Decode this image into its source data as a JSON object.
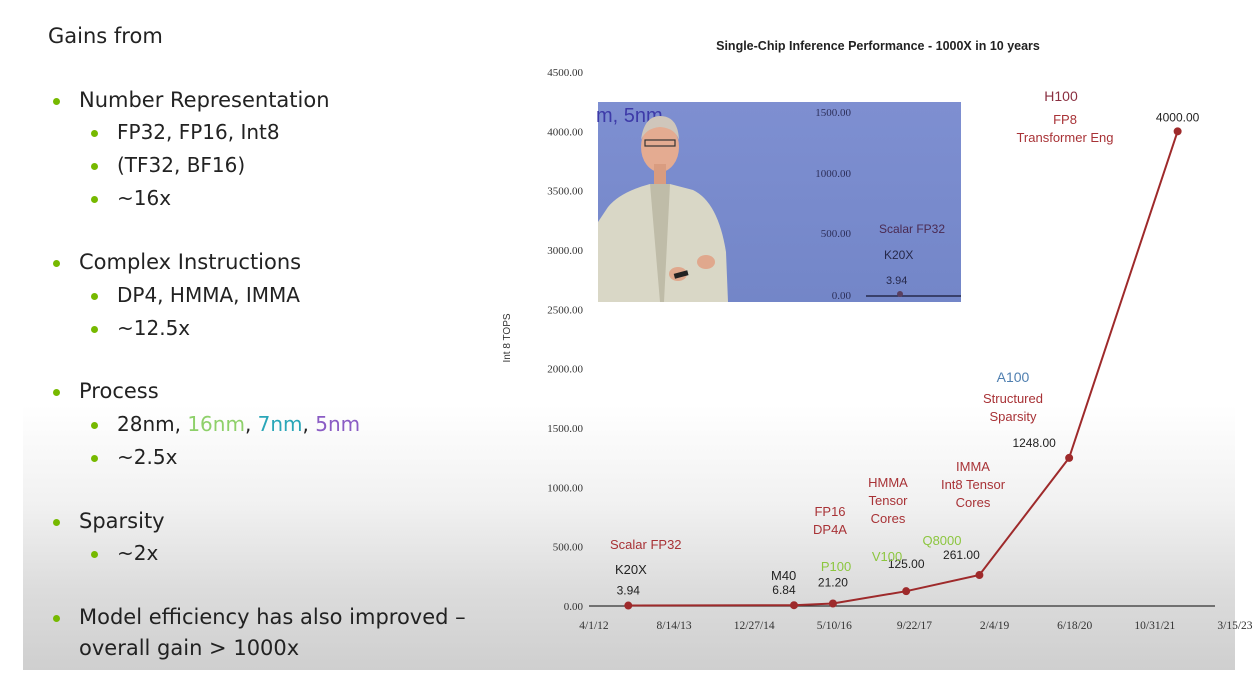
{
  "slide": {
    "heading": "Gains from",
    "bullets": [
      {
        "text": "Number Representation",
        "subs": [
          "FP32, FP16, Int8",
          "(TF32, BF16)",
          "~16x"
        ]
      },
      {
        "text": "Complex Instructions",
        "subs": [
          "DP4, HMMA, IMMA",
          "~12.5x"
        ]
      },
      {
        "text": "Process",
        "process": {
          "p1": "28nm",
          "sep1": ", ",
          "p2": "16nm",
          "sep2": ", ",
          "p3": "7nm",
          "sep3": ", ",
          "p4": "5nm"
        },
        "subs": [
          "~2.5x"
        ]
      },
      {
        "text": "Sparsity",
        "subs": [
          "~2x"
        ]
      },
      {
        "text_line1": "Model efficiency has also improved –",
        "text_line2": "overall gain > 1000x"
      }
    ]
  },
  "chart_data": {
    "type": "line",
    "title": "Single-Chip Inference Performance - 1000X in 10 years",
    "ylabel": "Int 8 TOPS",
    "xlabel": "",
    "ylim": [
      0,
      4500
    ],
    "yticks": [
      "0.00",
      "500.00",
      "1000.00",
      "1500.00",
      "2000.00",
      "2500.00",
      "3000.00",
      "3500.00",
      "4000.00",
      "4500.00"
    ],
    "xticks": [
      "4/1/12",
      "8/14/13",
      "12/27/14",
      "5/10/16",
      "9/22/17",
      "2/4/19",
      "6/18/20",
      "10/31/21",
      "3/15/23"
    ],
    "xlim": [
      "2012-04-01",
      "2023-03-15"
    ],
    "line_color": "#9e2a2b",
    "points": [
      {
        "date": "2012-11-01",
        "value": 3.94,
        "label": "3.94"
      },
      {
        "date": "2015-09-01",
        "value": 6.84,
        "label": "6.84"
      },
      {
        "date": "2016-05-01",
        "value": 21.2,
        "label": "21.20"
      },
      {
        "date": "2017-08-01",
        "value": 125.0,
        "label": "125.00"
      },
      {
        "date": "2018-11-01",
        "value": 261.0,
        "label": "261.00"
      },
      {
        "date": "2020-05-14",
        "value": 1248.0,
        "label": "1248.00"
      },
      {
        "date": "2022-03-22",
        "value": 4000.0,
        "label": "4000.00"
      }
    ],
    "annotations": {
      "k20x": {
        "gpu": "K20X",
        "feature": "Scalar FP32"
      },
      "m40": {
        "gpu": "M40"
      },
      "p100": {
        "gpu": "P100",
        "feature_line1": "FP16",
        "feature_line2": "DP4A"
      },
      "v100": {
        "gpu": "V100",
        "feature_line1": "HMMA",
        "feature_line2": "Tensor",
        "feature_line3": "Cores"
      },
      "q8000": {
        "gpu": "Q8000",
        "feature_line1": "IMMA",
        "feature_line2": "Int8 Tensor",
        "feature_line3": "Cores"
      },
      "a100": {
        "gpu": "A100",
        "feature_line1": "Structured",
        "feature_line2": "Sparsity"
      },
      "h100": {
        "gpu": "H100",
        "feature_line1": "FP8",
        "feature_line2": "Transformer Eng"
      }
    },
    "colors": {
      "feature": "#a83236",
      "black": "#222222",
      "gpu_green": "#8cc63f",
      "a100": "#4f7fb0",
      "h100": "#8a2f40"
    }
  },
  "video_overlay": {
    "text_fragment": "m, 5nm",
    "yticks": [
      "1500.00",
      "1000.00",
      "500.00",
      "0.00"
    ],
    "feature": "Scalar FP32",
    "gpu": "K20X",
    "value": "3.94"
  }
}
